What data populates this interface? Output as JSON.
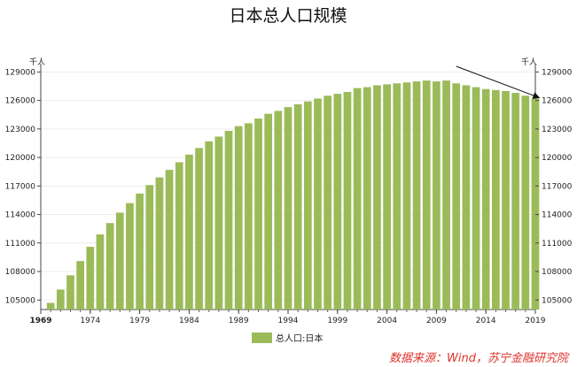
{
  "chart_data": {
    "type": "bar",
    "title": "日本总人口规模",
    "ylabel_left": "千人",
    "ylabel_right": "千人",
    "ylim": [
      104000,
      129500
    ],
    "y_ticks": [
      105000,
      108000,
      111000,
      114000,
      117000,
      120000,
      123000,
      126000,
      129000
    ],
    "x_ticks": [
      "1969",
      "1974",
      "1979",
      "1984",
      "1989",
      "1994",
      "1999",
      "2004",
      "2009",
      "2014",
      "2019"
    ],
    "grid": true,
    "legend": "bottom",
    "color": "#9bbb59",
    "series": [
      {
        "name": "总人口:日本",
        "x": [
          1970,
          1971,
          1972,
          1973,
          1974,
          1975,
          1976,
          1977,
          1978,
          1979,
          1980,
          1981,
          1982,
          1983,
          1984,
          1985,
          1986,
          1987,
          1988,
          1989,
          1990,
          1991,
          1992,
          1993,
          1994,
          1995,
          1996,
          1997,
          1998,
          1999,
          2000,
          2001,
          2002,
          2003,
          2004,
          2005,
          2006,
          2007,
          2008,
          2009,
          2010,
          2011,
          2012,
          2013,
          2014,
          2015,
          2016,
          2017,
          2018,
          2019
        ],
        "values": [
          104700,
          106100,
          107600,
          109100,
          110600,
          111900,
          113100,
          114200,
          115200,
          116200,
          117100,
          117900,
          118700,
          119500,
          120300,
          121000,
          121700,
          122200,
          122800,
          123300,
          123600,
          124100,
          124600,
          124900,
          125300,
          125600,
          125900,
          126200,
          126500,
          126700,
          126900,
          127300,
          127400,
          127600,
          127700,
          127800,
          127900,
          128000,
          128100,
          128000,
          128100,
          127800,
          127600,
          127400,
          127200,
          127100,
          127000,
          126800,
          126500,
          126200
        ]
      }
    ],
    "annotation": "arrow"
  },
  "source": "数据来源：Wind，苏宁金融研究院"
}
